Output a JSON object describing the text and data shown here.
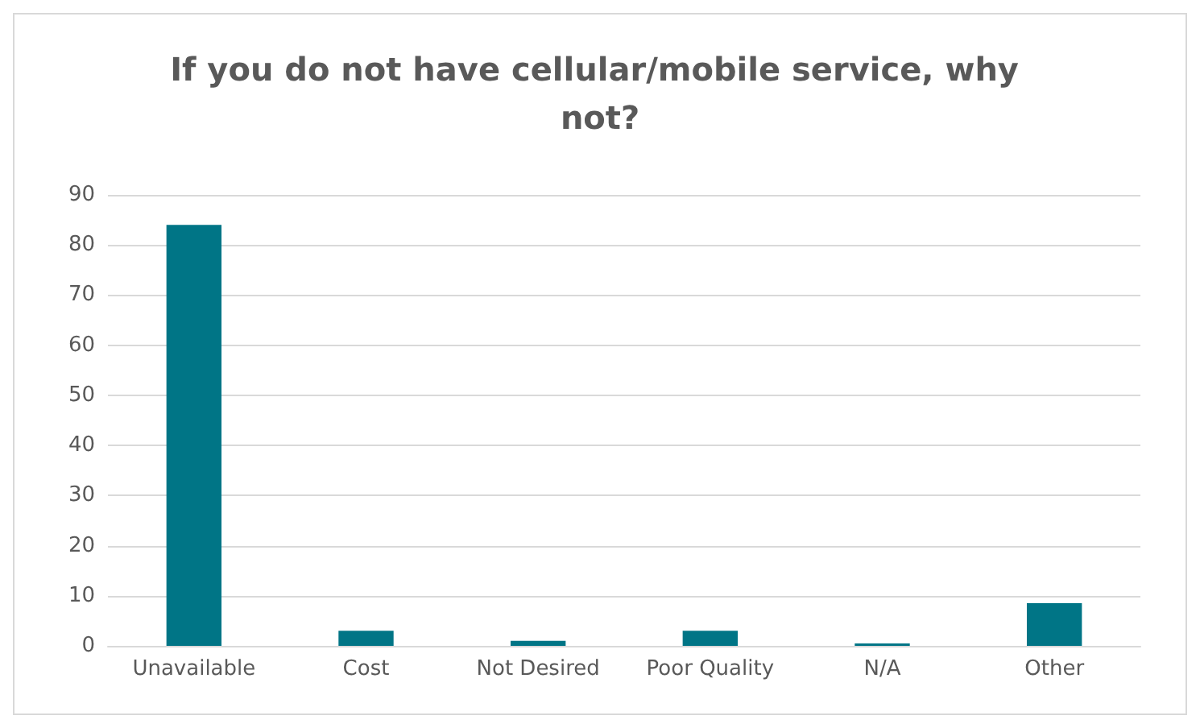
{
  "chart_data": {
    "type": "bar",
    "title": "If you do not have cellular/mobile service, why not?",
    "categories": [
      "Unavailable",
      "Cost",
      "Not Desired",
      "Poor Quality",
      "N/A",
      "Other"
    ],
    "values": [
      84,
      3,
      1,
      3,
      0.5,
      8.5
    ],
    "color": "#007586",
    "ylim": [
      0,
      90
    ],
    "yticks": [
      0,
      10,
      20,
      30,
      40,
      50,
      60,
      70,
      80,
      90
    ],
    "grid": "y"
  }
}
